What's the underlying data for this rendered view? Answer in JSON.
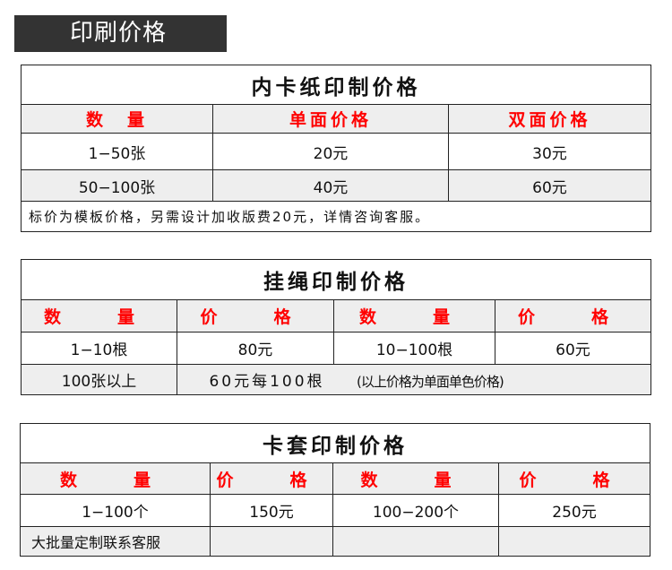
{
  "banner": "印刷价格",
  "t1": {
    "title": "内卡纸印制价格",
    "headers": [
      "数　量",
      "单面价格",
      "双面价格"
    ],
    "rows": [
      [
        "1−50张",
        "20元",
        "30元"
      ],
      [
        "50−100张",
        "40元",
        "60元"
      ]
    ],
    "note": "标价为模板价格，另需设计加收版费20元，详情咨询客服。"
  },
  "t2": {
    "title": "挂绳印制价格",
    "headers": [
      "数　量",
      "价　格",
      "数　量",
      "价　格"
    ],
    "rows": [
      [
        "1−10根",
        "80元",
        "10−100根",
        "60元"
      ]
    ],
    "extra": {
      "qty": "100张以上",
      "price": "60元每100根",
      "remark": "(以上价格为单面单色价格)"
    }
  },
  "t3": {
    "title": "卡套印制价格",
    "headers": [
      "数　量",
      "价　格",
      "数　量",
      "价　格"
    ],
    "rows": [
      [
        "1−100个",
        "150元",
        "100−200个",
        "250元"
      ]
    ],
    "note": "大批量定制联系客服"
  },
  "colors": {
    "header_text": "#ff0000",
    "banner_bg": "#333333",
    "header_bg": "#eeeeee"
  }
}
